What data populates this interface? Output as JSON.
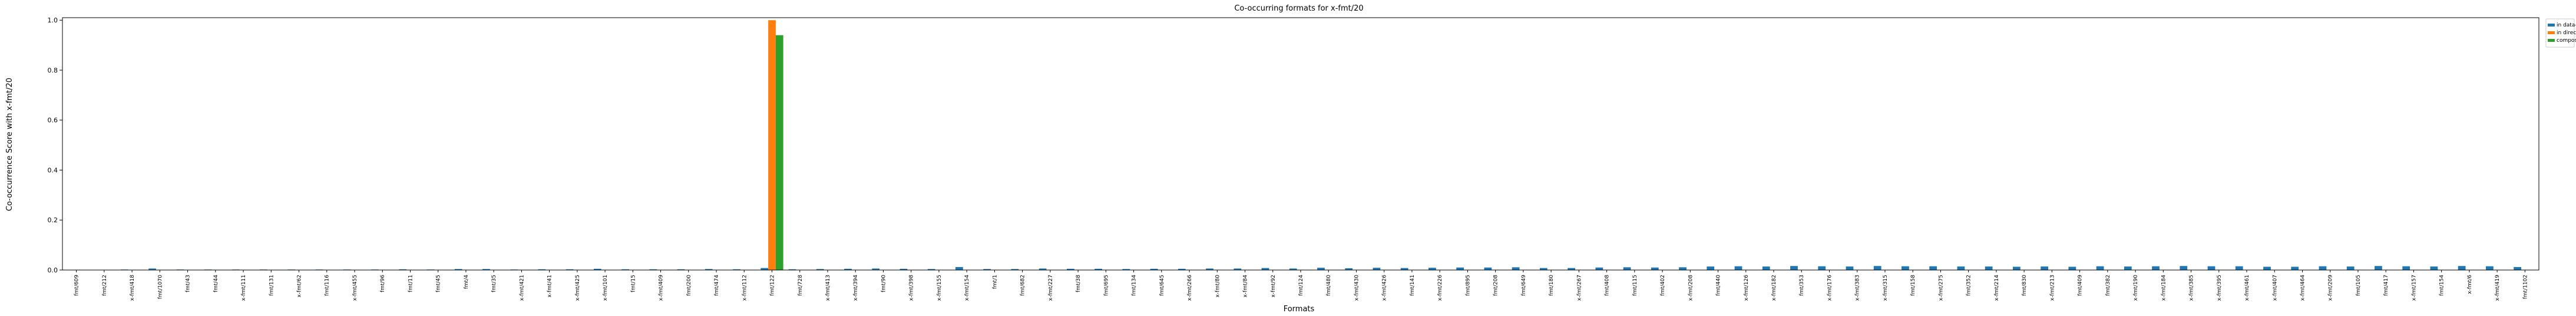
{
  "chart_data": {
    "type": "bar",
    "title": "Co-occurring formats for x-fmt/20",
    "x_label": "Formats",
    "y_label": "Co-occurrence Score with x-fmt/20",
    "categories": [
      "fmt/609",
      "fmt/212",
      "x-fmt/418",
      "fmt/1070",
      "fmt/43",
      "fmt/44",
      "x-fmt/111",
      "fmt/131",
      "x-fmt/62",
      "fmt/116",
      "x-fmt/455",
      "fmt/96",
      "fmt/11",
      "fmt/45",
      "fmt/4",
      "fmt/35",
      "x-fmt/421",
      "x-fmt/41",
      "x-fmt/425",
      "x-fmt/101",
      "fmt/15",
      "x-fmt/409",
      "fmt/200",
      "fmt/474",
      "x-fmt/112",
      "fmt/122",
      "fmt/728",
      "x-fmt/413",
      "x-fmt/394",
      "fmt/90",
      "x-fmt/398",
      "x-fmt/155",
      "x-fmt/154",
      "fmt/1",
      "fmt/682",
      "x-fmt/227",
      "fmt/38",
      "fmt/695",
      "fmt/134",
      "fmt/645",
      "x-fmt/266",
      "x-fmt/80",
      "x-fmt/84",
      "x-fmt/92",
      "fmt/124",
      "fmt/480",
      "x-fmt/430",
      "x-fmt/426",
      "fmt/141",
      "x-fmt/226",
      "fmt/895",
      "fmt/208",
      "fmt/649",
      "fmt/180",
      "x-fmt/267",
      "fmt/408",
      "fmt/115",
      "fmt/402",
      "x-fmt/208",
      "fmt/440",
      "x-fmt/126",
      "x-fmt/182",
      "fmt/353",
      "x-fmt/176",
      "x-fmt/383",
      "x-fmt/315",
      "fmt/158",
      "x-fmt/275",
      "fmt/352",
      "x-fmt/214",
      "fmt/830",
      "x-fmt/213",
      "fmt/409",
      "fmt/382",
      "x-fmt/190",
      "x-fmt/184",
      "x-fmt/385",
      "x-fmt/395",
      "x-fmt/461",
      "x-fmt/407",
      "x-fmt/464",
      "x-fmt/209",
      "fmt/105",
      "fmt/417",
      "x-fmt/157",
      "fmt/154",
      "x-fmt/6",
      "x-fmt/419",
      "fmt/1102"
    ],
    "series": [
      {
        "name": "in data-objects",
        "color": "#1f77b4",
        "values": [
          0.001,
          0.001,
          0.002,
          0.006,
          0.002,
          0.002,
          0.002,
          0.002,
          0.002,
          0.002,
          0.002,
          0.002,
          0.003,
          0.002,
          0.004,
          0.004,
          0.002,
          0.003,
          0.003,
          0.005,
          0.003,
          0.003,
          0.003,
          0.004,
          0.003,
          0.008,
          0.003,
          0.004,
          0.005,
          0.006,
          0.005,
          0.004,
          0.012,
          0.004,
          0.004,
          0.006,
          0.005,
          0.005,
          0.004,
          0.005,
          0.005,
          0.006,
          0.006,
          0.008,
          0.006,
          0.009,
          0.007,
          0.009,
          0.008,
          0.009,
          0.01,
          0.01,
          0.011,
          0.008,
          0.008,
          0.01,
          0.011,
          0.01,
          0.011,
          0.014,
          0.015,
          0.014,
          0.016,
          0.015,
          0.014,
          0.016,
          0.015,
          0.015,
          0.014,
          0.014,
          0.013,
          0.014,
          0.013,
          0.015,
          0.014,
          0.015,
          0.016,
          0.015,
          0.015,
          0.013,
          0.013,
          0.015,
          0.014,
          0.016,
          0.015,
          0.014,
          0.016,
          0.015,
          0.012
        ]
      },
      {
        "name": "in directories",
        "color": "#ff7f0e",
        "values": [
          0,
          0,
          0,
          0,
          0,
          0,
          0,
          0,
          0,
          0,
          0,
          0,
          0,
          0,
          0,
          0,
          0,
          0,
          0,
          0,
          0,
          0,
          0,
          0,
          0,
          1.0,
          0,
          0,
          0,
          0,
          0,
          0,
          0,
          0,
          0,
          0,
          0,
          0,
          0,
          0,
          0,
          0,
          0,
          0,
          0,
          0,
          0,
          0,
          0,
          0,
          0,
          0,
          0,
          0,
          0,
          0,
          0,
          0,
          0,
          0,
          0,
          0,
          0,
          0,
          0,
          0,
          0,
          0,
          0,
          0,
          0,
          0,
          0,
          0,
          0,
          0,
          0,
          0,
          0,
          0,
          0,
          0,
          0,
          0,
          0,
          0,
          0,
          0,
          0
        ]
      },
      {
        "name": "composed",
        "color": "#2ca02c",
        "values": [
          0,
          0,
          0,
          0,
          0,
          0,
          0,
          0,
          0,
          0,
          0,
          0,
          0,
          0,
          0,
          0,
          0,
          0,
          0,
          0,
          0,
          0,
          0,
          0,
          0,
          0.94,
          0,
          0,
          0,
          0,
          0,
          0,
          0,
          0,
          0,
          0,
          0,
          0,
          0,
          0,
          0,
          0,
          0,
          0,
          0,
          0,
          0,
          0,
          0,
          0,
          0,
          0,
          0,
          0,
          0,
          0,
          0,
          0,
          0,
          0,
          0,
          0,
          0,
          0,
          0,
          0,
          0,
          0,
          0,
          0,
          0,
          0,
          0,
          0,
          0,
          0,
          0,
          0,
          0,
          0,
          0,
          0,
          0,
          0,
          0,
          0,
          0,
          0,
          0
        ]
      }
    ],
    "ylim": [
      0,
      1.01
    ],
    "yticks": [
      {
        "value": 0,
        "label": "0.0"
      },
      {
        "value": 0.2,
        "label": "0.2"
      },
      {
        "value": 0.4,
        "label": "0.4"
      },
      {
        "value": 0.6,
        "label": "0.6"
      },
      {
        "value": 0.8,
        "label": "0.8"
      },
      {
        "value": 1.0,
        "label": "1.0"
      }
    ],
    "legend": "outside-upper-right"
  }
}
